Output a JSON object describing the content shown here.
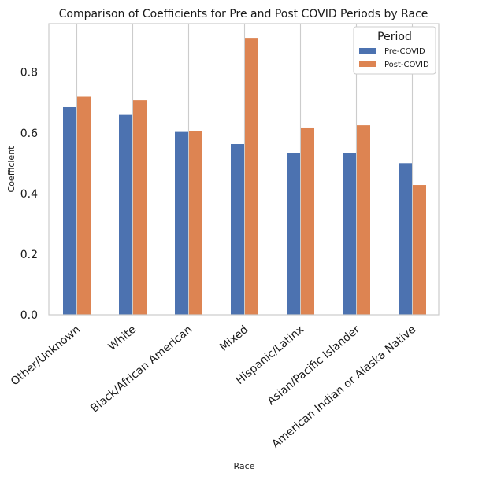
{
  "chart_data": {
    "type": "bar",
    "title": "Comparison of Coefficients for Pre and Post COVID Periods by Race",
    "xlabel": "Race",
    "ylabel": "Coefficient",
    "categories": [
      "Other/Unknown",
      "White",
      "Black/African American",
      "Mixed",
      "Hispanic/Latinx",
      "Asian/Pacific Islander",
      "American Indian or Alaska Native"
    ],
    "series": [
      {
        "name": "Pre-COVID",
        "color": "#4c72b0",
        "values": [
          0.685,
          0.66,
          0.603,
          0.563,
          0.532,
          0.532,
          0.5
        ]
      },
      {
        "name": "Post-COVID",
        "color": "#dd8452",
        "values": [
          0.72,
          0.708,
          0.605,
          0.913,
          0.615,
          0.625,
          0.428
        ]
      }
    ],
    "ylim": [
      0,
      0.96
    ],
    "yticks": [
      "0.0",
      "0.2",
      "0.4",
      "0.6",
      "0.8"
    ],
    "grid": "vertical",
    "legend": {
      "title": "Period",
      "placement": "top-right"
    }
  }
}
